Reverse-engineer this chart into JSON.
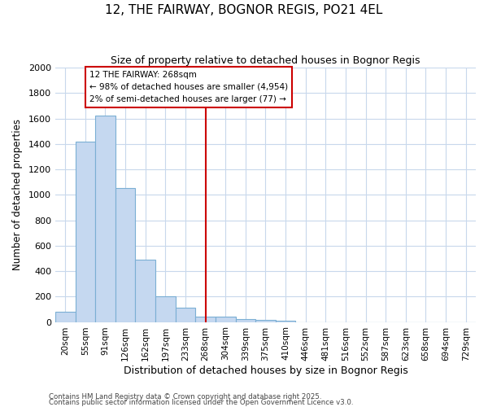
{
  "title1": "12, THE FAIRWAY, BOGNOR REGIS, PO21 4EL",
  "title2": "Size of property relative to detached houses in Bognor Regis",
  "xlabel": "Distribution of detached houses by size in Bognor Regis",
  "ylabel": "Number of detached properties",
  "categories": [
    "20sqm",
    "55sqm",
    "91sqm",
    "126sqm",
    "162sqm",
    "197sqm",
    "233sqm",
    "268sqm",
    "304sqm",
    "339sqm",
    "375sqm",
    "410sqm",
    "446sqm",
    "481sqm",
    "516sqm",
    "552sqm",
    "587sqm",
    "623sqm",
    "658sqm",
    "694sqm",
    "729sqm"
  ],
  "values": [
    80,
    1420,
    1620,
    1050,
    490,
    205,
    110,
    40,
    40,
    20,
    15,
    10,
    0,
    0,
    0,
    0,
    0,
    0,
    0,
    0,
    0
  ],
  "bar_color": "#c5d8f0",
  "bar_edge_color": "#7bafd4",
  "vline_index": 7,
  "vline_color": "#cc0000",
  "ann_line1": "12 THE FAIRWAY: 268sqm",
  "ann_line2": "← 98% of detached houses are smaller (4,954)",
  "ann_line3": "2% of semi-detached houses are larger (77) →",
  "annotation_box_color": "#cc0000",
  "ylim": [
    0,
    2000
  ],
  "yticks": [
    0,
    200,
    400,
    600,
    800,
    1000,
    1200,
    1400,
    1600,
    1800,
    2000
  ],
  "footer1": "Contains HM Land Registry data © Crown copyright and database right 2025.",
  "footer2": "Contains public sector information licensed under the Open Government Licence v3.0.",
  "bg_color": "#ffffff",
  "plot_bg_color": "#ffffff",
  "grid_color": "#c8d8ec"
}
